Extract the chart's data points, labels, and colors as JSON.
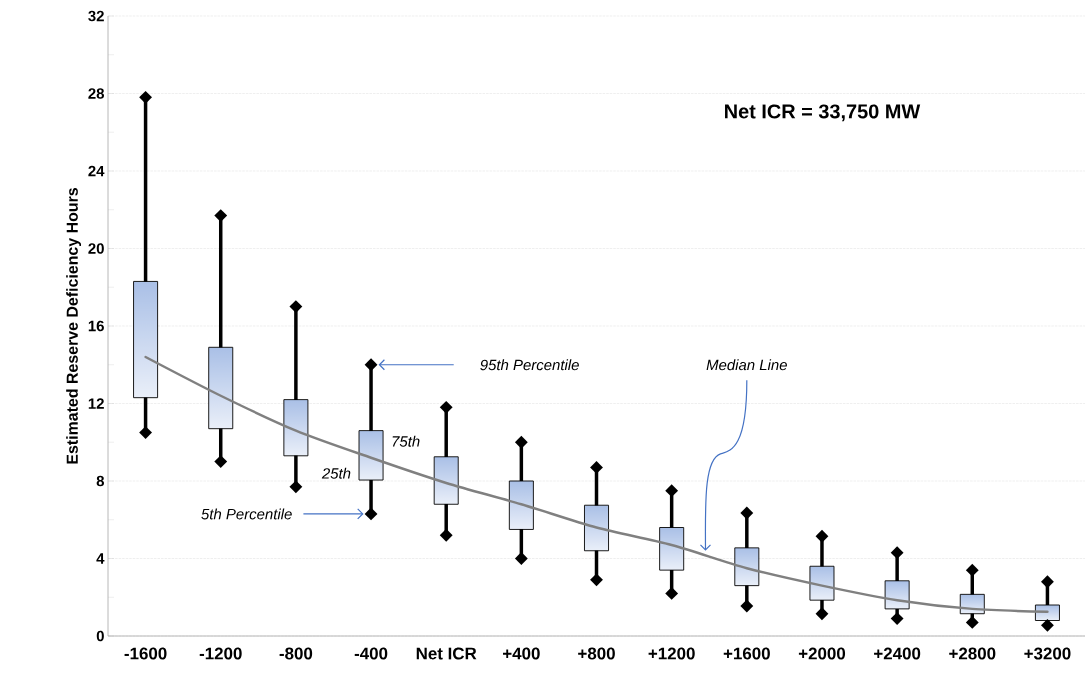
{
  "chart_data": {
    "type": "box",
    "ylabel": "Estimated Reserve Deficiency Hours",
    "categories": [
      "-1600",
      "-1200",
      "-800",
      "-400",
      "Net ICR",
      "+400",
      "+800",
      "+1200",
      "+1600",
      "+2000",
      "+2400",
      "+2800",
      "+3200"
    ],
    "series": [
      {
        "type": "box",
        "color": "#a9bfe6",
        "boxes": [
          {
            "low": 10.5,
            "q1": 12.3,
            "q3": 18.3,
            "high": 27.8
          },
          {
            "low": 9.0,
            "q1": 10.7,
            "q3": 14.9,
            "high": 21.7
          },
          {
            "low": 7.7,
            "q1": 9.3,
            "q3": 12.2,
            "high": 17.0
          },
          {
            "low": 6.3,
            "q1": 8.05,
            "q3": 10.6,
            "high": 14.0
          },
          {
            "low": 5.2,
            "q1": 6.8,
            "q3": 9.25,
            "high": 11.8
          },
          {
            "low": 4.0,
            "q1": 5.5,
            "q3": 8.0,
            "high": 10.0
          },
          {
            "low": 2.9,
            "q1": 4.4,
            "q3": 6.75,
            "high": 8.7
          },
          {
            "low": 2.2,
            "q1": 3.4,
            "q3": 5.6,
            "high": 7.5
          },
          {
            "low": 1.55,
            "q1": 2.6,
            "q3": 4.55,
            "high": 6.35
          },
          {
            "low": 1.15,
            "q1": 1.85,
            "q3": 3.6,
            "high": 5.15
          },
          {
            "low": 0.9,
            "q1": 1.4,
            "q3": 2.85,
            "high": 4.3
          },
          {
            "low": 0.7,
            "q1": 1.15,
            "q3": 2.15,
            "high": 3.4
          },
          {
            "low": 0.55,
            "q1": 0.8,
            "q3": 1.6,
            "high": 2.8
          }
        ]
      },
      {
        "type": "line",
        "color": "#808080",
        "values": [
          14.4,
          12.4,
          10.6,
          9.2,
          7.9,
          6.8,
          5.6,
          4.7,
          3.5,
          2.6,
          1.85,
          1.4,
          1.25
        ]
      }
    ],
    "ylim": [
      0,
      32
    ],
    "yticks": [
      0,
      4,
      8,
      12,
      16,
      20,
      24,
      28,
      32
    ],
    "grid": "y",
    "annotations": [
      "Net ICR = 33,750 MW",
      "95th Percentile",
      {
        "text": "75th",
        "x": "-400",
        "y": 10.6
      },
      {
        "text": "25th",
        "x": "-400",
        "y": 8.05
      },
      "5th Percentile",
      "Median Line"
    ]
  }
}
